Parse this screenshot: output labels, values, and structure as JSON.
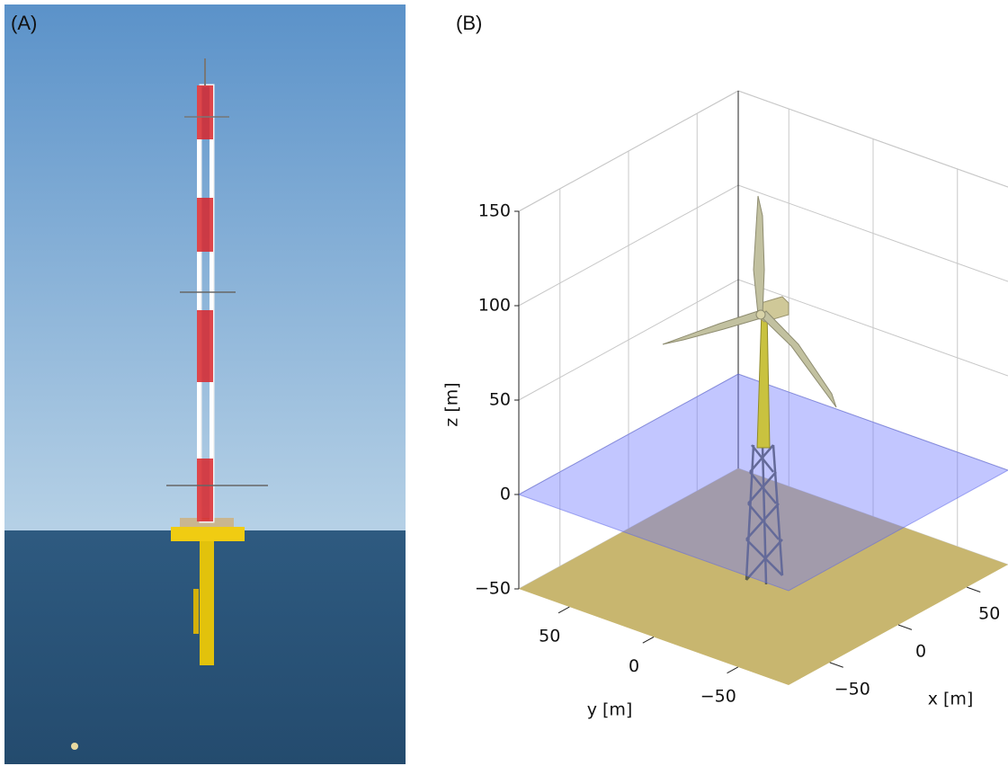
{
  "panel_a": {
    "label": "(A)"
  },
  "panel_b": {
    "label": "(B)",
    "water_level": 0,
    "z_axis": {
      "label": "z [m]",
      "lim": [
        -50,
        150
      ],
      "ticks": [
        {
          "value": -50,
          "label": "−50"
        },
        0,
        50,
        100,
        150
      ]
    },
    "y_axis": {
      "label": "y [m]",
      "lim": [
        80,
        -80
      ],
      "ticks": [
        50,
        0,
        {
          "value": -50,
          "label": "−50"
        }
      ]
    },
    "x_axis": {
      "label": "x [m]",
      "lim": [
        -80,
        80
      ],
      "ticks": [
        {
          "value": -50,
          "label": "−50"
        },
        0,
        50
      ]
    }
  }
}
